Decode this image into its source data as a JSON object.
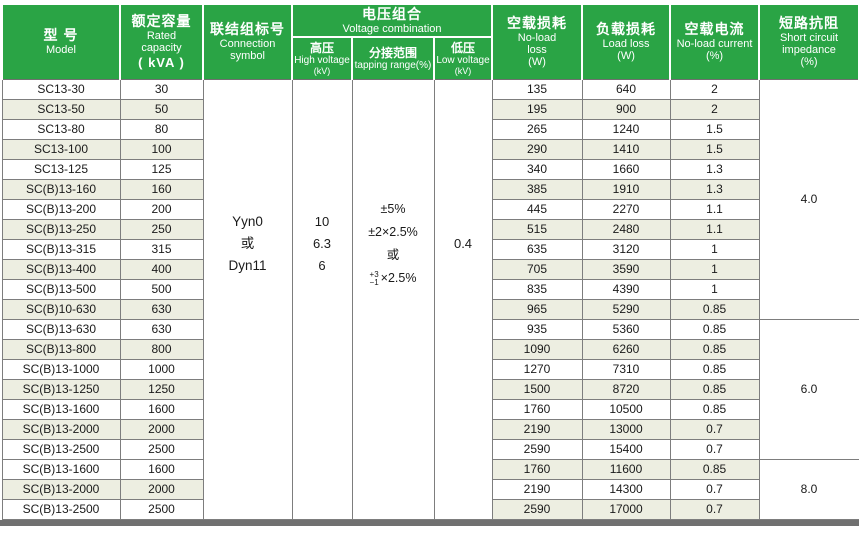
{
  "colors": {
    "header_green": "#2aa445",
    "row_shade": "#edeee1",
    "grid_border": "#7d7d7d",
    "bottom_bar": "#707070"
  },
  "table": {
    "header": {
      "model": {
        "zh": "型  号",
        "en": "Model"
      },
      "capacity": {
        "zh": "额定容量",
        "lines": [
          "Rated",
          "capacity",
          "( kVA )"
        ]
      },
      "connection": {
        "zh": "联结组标号",
        "lines": [
          "Connection",
          "symbol"
        ]
      },
      "voltage": {
        "zh": "电压组合",
        "en": "Voltage combination"
      },
      "high_voltage": {
        "zh": "高压",
        "en": "High voltage",
        "unit": "(kV)"
      },
      "tapping": {
        "zh": "分接范围",
        "en": "tapping range(%)"
      },
      "low_voltage": {
        "zh": "低压",
        "en": "Low voltage",
        "unit": "(kV)"
      },
      "no_load_loss": {
        "zh": "空载损耗",
        "lines": [
          "No-load",
          "loss",
          "(W)"
        ]
      },
      "load_loss": {
        "zh": "负载损耗",
        "lines": [
          "Load loss",
          "(W)"
        ]
      },
      "no_load_current": {
        "zh": "空载电流",
        "lines": [
          "No-load current",
          "(%)"
        ]
      },
      "impedance": {
        "zh": "短路抗阻",
        "lines": [
          "Short circuit",
          "impedance",
          "(%)"
        ]
      }
    },
    "merged": {
      "connection_lines": [
        "Yyn0",
        "或",
        "Dyn11"
      ],
      "hv_lines": [
        "10",
        "6.3",
        "6"
      ],
      "tapping_lines": [
        "±5%",
        "±2×2.5%",
        "或"
      ],
      "tapping_stacked": {
        "top": "+3",
        "bottom": "−1",
        "rest": "×2.5%"
      },
      "low_voltage": "0.4"
    },
    "impedance_groups": [
      {
        "value": "4.0",
        "span": 12
      },
      {
        "value": "6.0",
        "span": 7
      },
      {
        "value": "8.0",
        "span": 3
      }
    ],
    "rows": [
      {
        "model": "SC13-30",
        "capacity": "30",
        "no_load_loss": "135",
        "load_loss": "640",
        "no_load_current": "2",
        "shade_left": false,
        "shade_right": false
      },
      {
        "model": "SC13-50",
        "capacity": "50",
        "no_load_loss": "195",
        "load_loss": "900",
        "no_load_current": "2",
        "shade_left": true,
        "shade_right": true
      },
      {
        "model": "SC13-80",
        "capacity": "80",
        "no_load_loss": "265",
        "load_loss": "1240",
        "no_load_current": "1.5",
        "shade_left": false,
        "shade_right": false
      },
      {
        "model": "SC13-100",
        "capacity": "100",
        "no_load_loss": "290",
        "load_loss": "1410",
        "no_load_current": "1.5",
        "shade_left": true,
        "shade_right": true
      },
      {
        "model": "SC13-125",
        "capacity": "125",
        "no_load_loss": "340",
        "load_loss": "1660",
        "no_load_current": "1.3",
        "shade_left": false,
        "shade_right": false
      },
      {
        "model": "SC(B)13-160",
        "capacity": "160",
        "no_load_loss": "385",
        "load_loss": "1910",
        "no_load_current": "1.3",
        "shade_left": true,
        "shade_right": true
      },
      {
        "model": "SC(B)13-200",
        "capacity": "200",
        "no_load_loss": "445",
        "load_loss": "2270",
        "no_load_current": "1.1",
        "shade_left": false,
        "shade_right": false
      },
      {
        "model": "SC(B)13-250",
        "capacity": "250",
        "no_load_loss": "515",
        "load_loss": "2480",
        "no_load_current": "1.1",
        "shade_left": true,
        "shade_right": true
      },
      {
        "model": "SC(B)13-315",
        "capacity": "315",
        "no_load_loss": "635",
        "load_loss": "3120",
        "no_load_current": "1",
        "shade_left": false,
        "shade_right": false
      },
      {
        "model": "SC(B)13-400",
        "capacity": "400",
        "no_load_loss": "705",
        "load_loss": "3590",
        "no_load_current": "1",
        "shade_left": true,
        "shade_right": true
      },
      {
        "model": "SC(B)13-500",
        "capacity": "500",
        "no_load_loss": "835",
        "load_loss": "4390",
        "no_load_current": "1",
        "shade_left": false,
        "shade_right": false
      },
      {
        "model": "SC(B)10-630",
        "capacity": "630",
        "no_load_loss": "965",
        "load_loss": "5290",
        "no_load_current": "0.85",
        "shade_left": true,
        "shade_right": true
      },
      {
        "model": "SC(B)13-630",
        "capacity": "630",
        "no_load_loss": "935",
        "load_loss": "5360",
        "no_load_current": "0.85",
        "shade_left": false,
        "shade_right": false
      },
      {
        "model": "SC(B)13-800",
        "capacity": "800",
        "no_load_loss": "1090",
        "load_loss": "6260",
        "no_load_current": "0.85",
        "shade_left": true,
        "shade_right": true
      },
      {
        "model": "SC(B)13-1000",
        "capacity": "1000",
        "no_load_loss": "1270",
        "load_loss": "7310",
        "no_load_current": "0.85",
        "shade_left": false,
        "shade_right": false
      },
      {
        "model": "SC(B)13-1250",
        "capacity": "1250",
        "no_load_loss": "1500",
        "load_loss": "8720",
        "no_load_current": "0.85",
        "shade_left": true,
        "shade_right": true
      },
      {
        "model": "SC(B)13-1600",
        "capacity": "1600",
        "no_load_loss": "1760",
        "load_loss": "10500",
        "no_load_current": "0.85",
        "shade_left": false,
        "shade_right": false
      },
      {
        "model": "SC(B)13-2000",
        "capacity": "2000",
        "no_load_loss": "2190",
        "load_loss": "13000",
        "no_load_current": "0.7",
        "shade_left": true,
        "shade_right": true
      },
      {
        "model": "SC(B)13-2500",
        "capacity": "2500",
        "no_load_loss": "2590",
        "load_loss": "15400",
        "no_load_current": "0.7",
        "shade_left": false,
        "shade_right": false
      },
      {
        "model": "SC(B)13-1600",
        "capacity": "1600",
        "no_load_loss": "1760",
        "load_loss": "11600",
        "no_load_current": "0.85",
        "shade_left": false,
        "shade_right": true
      },
      {
        "model": "SC(B)13-2000",
        "capacity": "2000",
        "no_load_loss": "2190",
        "load_loss": "14300",
        "no_load_current": "0.7",
        "shade_left": true,
        "shade_right": false
      },
      {
        "model": "SC(B)13-2500",
        "capacity": "2500",
        "no_load_loss": "2590",
        "load_loss": "17000",
        "no_load_current": "0.7",
        "shade_left": false,
        "shade_right": true
      }
    ]
  }
}
